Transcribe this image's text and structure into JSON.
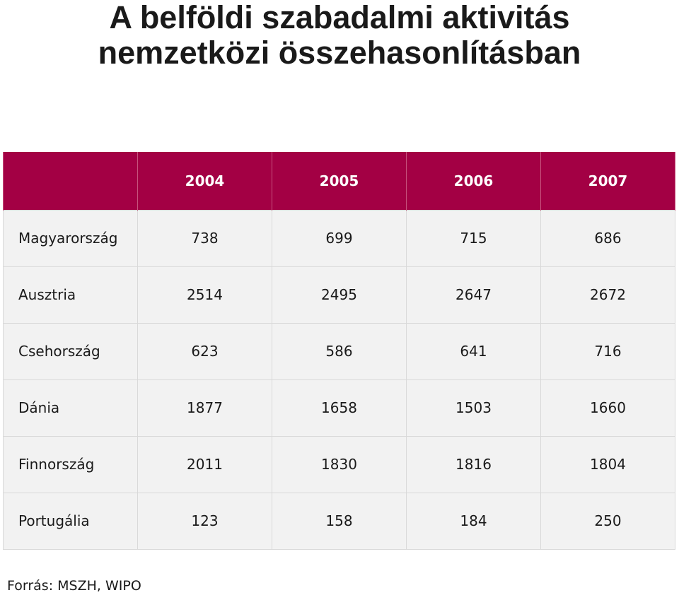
{
  "title": {
    "line1": "A belföldi szabadalmi aktivitás",
    "line2": "nemzetközi összehasonlításban"
  },
  "table": {
    "header_corner": "",
    "years": [
      "2004",
      "2005",
      "2006",
      "2007"
    ],
    "rows": [
      {
        "country": "Magyarország",
        "values": [
          "738",
          "699",
          "715",
          "686"
        ]
      },
      {
        "country": "Ausztria",
        "values": [
          "2514",
          "2495",
          "2647",
          "2672"
        ]
      },
      {
        "country": "Csehország",
        "values": [
          "623",
          "586",
          "641",
          "716"
        ]
      },
      {
        "country": "Dánia",
        "values": [
          "1877",
          "1658",
          "1503",
          "1660"
        ]
      },
      {
        "country": "Finnország",
        "values": [
          "2011",
          "1830",
          "1816",
          "1804"
        ]
      },
      {
        "country": "Portugália",
        "values": [
          "123",
          "158",
          "184",
          "250"
        ]
      }
    ]
  },
  "source": "Forrás: MSZH, WIPO",
  "colors": {
    "header_bg": "#a30044",
    "cell_bg": "#f2f2f2"
  }
}
